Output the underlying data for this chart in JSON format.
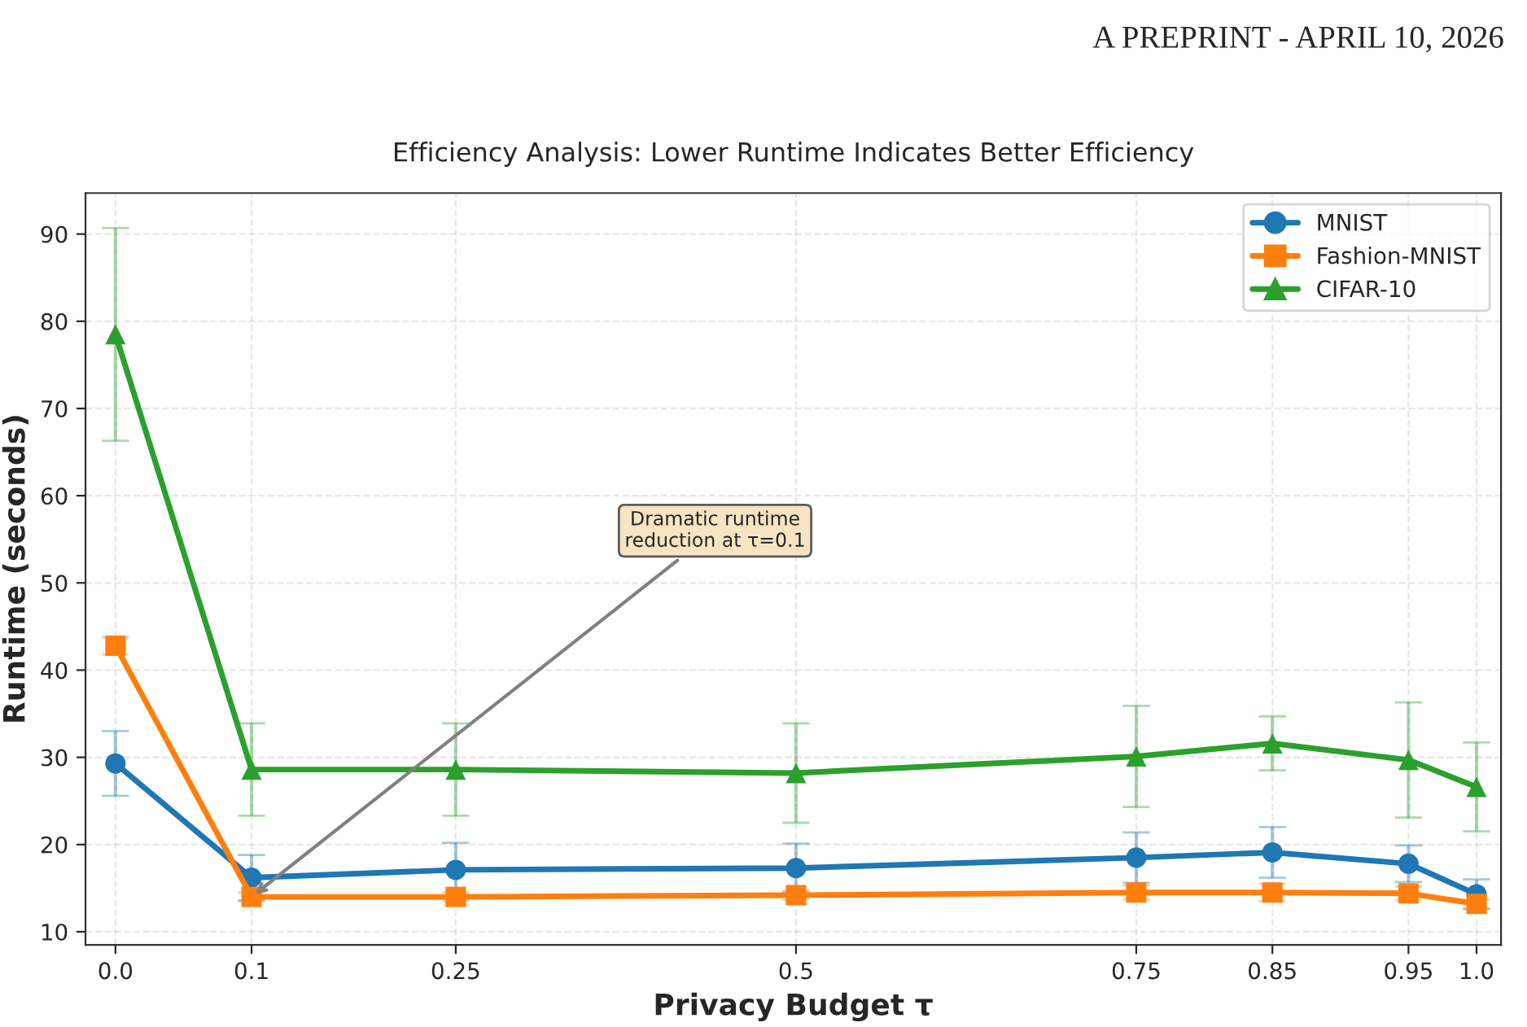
{
  "chart_data": {
    "type": "line",
    "title": "Efficiency Analysis: Lower Runtime Indicates Better Efficiency",
    "xlabel": "Privacy Budget τ",
    "ylabel": "Runtime (seconds)",
    "x": [
      0.0,
      0.1,
      0.25,
      0.5,
      0.75,
      0.85,
      0.95,
      1.0
    ],
    "series": [
      {
        "name": "MNIST",
        "color": "#1f77b4",
        "marker": "circle",
        "values": [
          29.3,
          16.2,
          17.1,
          17.3,
          18.5,
          19.1,
          17.8,
          14.3
        ],
        "errors": [
          3.7,
          2.6,
          3.1,
          2.8,
          2.9,
          2.9,
          2.1,
          1.7
        ]
      },
      {
        "name": "Fashion-MNIST",
        "color": "#ff7f0e",
        "marker": "square",
        "values": [
          42.8,
          14.0,
          14.0,
          14.2,
          14.5,
          14.5,
          14.4,
          13.2
        ],
        "errors": [
          1.0,
          0.5,
          0.5,
          0.5,
          0.8,
          1.0,
          0.8,
          0.5
        ]
      },
      {
        "name": "CIFAR-10",
        "color": "#2ca02c",
        "marker": "triangle",
        "values": [
          78.5,
          28.6,
          28.6,
          28.2,
          30.1,
          31.6,
          29.7,
          26.6
        ],
        "errors": [
          12.2,
          5.3,
          5.3,
          5.7,
          5.8,
          3.1,
          6.6,
          5.1
        ]
      }
    ],
    "xlim": [
      -0.022,
      1.018
    ],
    "ylim": [
      8.5,
      94.7
    ],
    "xticks": [
      {
        "value": 0,
        "label": "0.0"
      },
      0.1,
      0.25,
      0.5,
      0.75,
      0.85,
      0.95,
      {
        "value": 1,
        "label": "1.0"
      }
    ],
    "yticks": [
      10,
      20,
      30,
      40,
      50,
      60,
      70,
      80,
      90
    ],
    "grid": true,
    "legend": "top right",
    "line_style": "solid",
    "annotations": [
      {
        "text": "Dramatic runtime\nreduction at τ=0.1",
        "x": 0.1,
        "y": 14.0
      },
      "A PREPRINT - APRIL 10, 2026"
    ]
  }
}
